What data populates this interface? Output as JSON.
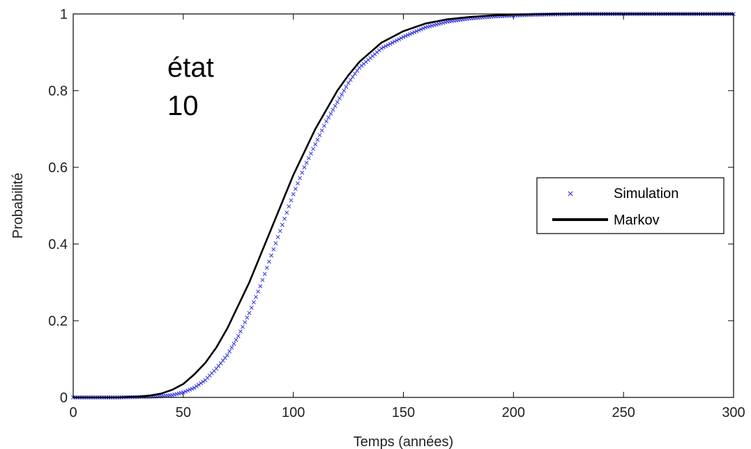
{
  "chart_data": {
    "type": "line",
    "title": "",
    "xlabel": "Temps (années)",
    "ylabel": "Probabilité",
    "xlim": [
      0,
      300
    ],
    "ylim": [
      0,
      1
    ],
    "xticks": [
      0,
      50,
      100,
      150,
      200,
      250,
      300
    ],
    "yticks": [
      0,
      0.2,
      0.4,
      0.6,
      0.8,
      1
    ],
    "ytick_labels": [
      "0",
      "0.2",
      "0.4",
      "0.6",
      "0.8",
      "1"
    ],
    "grid": false,
    "legend_position": "center-right",
    "annotation": [
      "état",
      "10"
    ],
    "series": [
      {
        "name": "Simulation",
        "style": "x-markers",
        "color": "#3333dd",
        "x": [
          0,
          20,
          30,
          40,
          45,
          50,
          55,
          60,
          65,
          70,
          75,
          80,
          85,
          90,
          95,
          100,
          105,
          110,
          115,
          120,
          125,
          130,
          140,
          150,
          160,
          170,
          180,
          190,
          200,
          210,
          220,
          230,
          250,
          275,
          300
        ],
        "y": [
          0,
          0,
          0.001,
          0.003,
          0.006,
          0.013,
          0.025,
          0.045,
          0.075,
          0.11,
          0.16,
          0.22,
          0.29,
          0.37,
          0.45,
          0.53,
          0.6,
          0.66,
          0.72,
          0.77,
          0.82,
          0.86,
          0.91,
          0.94,
          0.965,
          0.98,
          0.988,
          0.993,
          0.996,
          0.998,
          0.999,
          1,
          1,
          1,
          1
        ]
      },
      {
        "name": "Markov",
        "style": "line",
        "color": "#000000",
        "x": [
          0,
          20,
          30,
          35,
          40,
          45,
          50,
          55,
          60,
          65,
          70,
          75,
          80,
          85,
          90,
          95,
          100,
          105,
          110,
          115,
          120,
          125,
          130,
          140,
          150,
          160,
          170,
          180,
          190,
          200,
          210,
          220,
          250,
          300
        ],
        "y": [
          0,
          0,
          0.002,
          0.005,
          0.01,
          0.02,
          0.035,
          0.06,
          0.09,
          0.13,
          0.18,
          0.24,
          0.3,
          0.37,
          0.44,
          0.51,
          0.58,
          0.64,
          0.7,
          0.75,
          0.8,
          0.84,
          0.875,
          0.925,
          0.955,
          0.975,
          0.986,
          0.992,
          0.996,
          0.998,
          0.999,
          1,
          1,
          1
        ]
      }
    ]
  }
}
